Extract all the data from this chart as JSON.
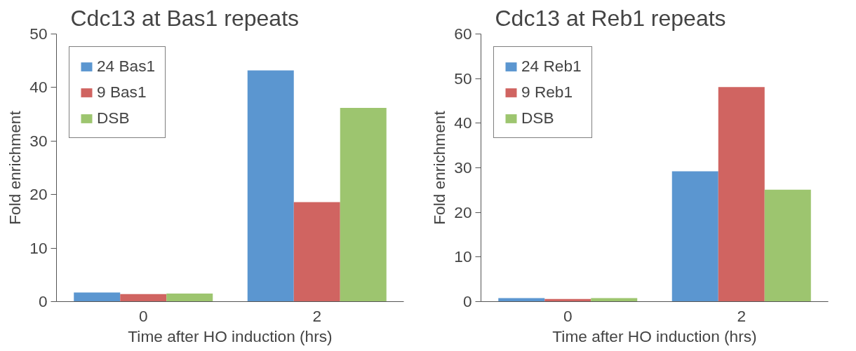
{
  "chart_data": [
    {
      "type": "bar",
      "title": "Cdc13 at Bas1 repeats",
      "xlabel": "Time after HO induction (hrs)",
      "ylabel": "Fold enrichment",
      "categories": [
        "0",
        "2"
      ],
      "ylim": [
        0,
        50
      ],
      "yticks": [
        0,
        10,
        20,
        30,
        40,
        50
      ],
      "legend": "top left",
      "grid": false,
      "series": [
        {
          "name": "24 Bas1",
          "color": "#5b96d0",
          "values": [
            1.7,
            43.2
          ]
        },
        {
          "name": "9 Bas1",
          "color": "#d06461",
          "values": [
            1.4,
            18.6
          ]
        },
        {
          "name": "DSB",
          "color": "#9dc56f",
          "values": [
            1.5,
            36.2
          ]
        }
      ]
    },
    {
      "type": "bar",
      "title": "Cdc13 at Reb1 repeats",
      "xlabel": "Time after HO induction (hrs)",
      "ylabel": "Fold enrichment",
      "categories": [
        "0",
        "2"
      ],
      "ylim": [
        0,
        60
      ],
      "yticks": [
        0,
        10,
        20,
        30,
        40,
        50,
        60
      ],
      "legend": "top left",
      "grid": false,
      "series": [
        {
          "name": "24 Reb1",
          "color": "#5b96d0",
          "values": [
            0.8,
            29.2
          ]
        },
        {
          "name": "9 Reb1",
          "color": "#d06461",
          "values": [
            0.6,
            48.1
          ]
        },
        {
          "name": "DSB",
          "color": "#9dc56f",
          "values": [
            0.8,
            25.1
          ]
        }
      ]
    }
  ]
}
